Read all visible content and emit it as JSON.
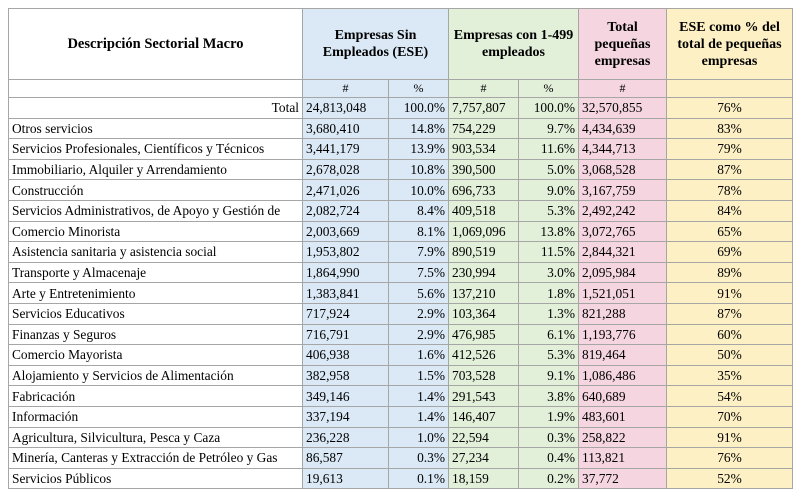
{
  "headers": {
    "description": "Descripción Sectorial Macro",
    "ese": "Empresas Sin Empleados (ESE)",
    "small": "Empresas con 1-499 empleados",
    "total_small": "Total pequeñas empresas",
    "ratio": "ESE como % del total de pequeñas empresas"
  },
  "subheaders": {
    "ese_count": "#",
    "ese_pct": "%",
    "small_count": "#",
    "small_pct": "%",
    "total_count": "#"
  },
  "total_row": {
    "label": "Total",
    "ese": "24,813,048",
    "ese_pct": "100.0%",
    "small": "7,757,807",
    "small_pct": "100.0%",
    "total": "32,570,855",
    "ratio": "76%"
  },
  "rows": [
    {
      "sector": "Otros servicios",
      "ese": "3,680,410",
      "ese_pct": "14.8%",
      "small": "754,229",
      "small_pct": "9.7%",
      "total": "4,434,639",
      "ratio": "83%"
    },
    {
      "sector": "Servicios Profesionales, Científicos y Técnicos",
      "ese": "3,441,179",
      "ese_pct": "13.9%",
      "small": "903,534",
      "small_pct": "11.6%",
      "total": "4,344,713",
      "ratio": "79%"
    },
    {
      "sector": "Immobiliario, Alquiler y Arrendamiento",
      "ese": "2,678,028",
      "ese_pct": "10.8%",
      "small": "390,500",
      "small_pct": "5.0%",
      "total": "3,068,528",
      "ratio": "87%"
    },
    {
      "sector": "Construcción",
      "ese": "2,471,026",
      "ese_pct": "10.0%",
      "small": "696,733",
      "small_pct": "9.0%",
      "total": "3,167,759",
      "ratio": "78%"
    },
    {
      "sector": "Servicios Administrativos, de Apoyo y Gestión de",
      "ese": "2,082,724",
      "ese_pct": "8.4%",
      "small": "409,518",
      "small_pct": "5.3%",
      "total": "2,492,242",
      "ratio": "84%"
    },
    {
      "sector": "Comercio Minorista",
      "ese": "2,003,669",
      "ese_pct": "8.1%",
      "small": "1,069,096",
      "small_pct": "13.8%",
      "total": "3,072,765",
      "ratio": "65%"
    },
    {
      "sector": "Asistencia sanitaria y asistencia social",
      "ese": "1,953,802",
      "ese_pct": "7.9%",
      "small": "890,519",
      "small_pct": "11.5%",
      "total": "2,844,321",
      "ratio": "69%"
    },
    {
      "sector": "Transporte y Almacenaje",
      "ese": "1,864,990",
      "ese_pct": "7.5%",
      "small": "230,994",
      "small_pct": "3.0%",
      "total": "2,095,984",
      "ratio": "89%"
    },
    {
      "sector": "Arte y Entretenimiento",
      "ese": "1,383,841",
      "ese_pct": "5.6%",
      "small": "137,210",
      "small_pct": "1.8%",
      "total": "1,521,051",
      "ratio": "91%"
    },
    {
      "sector": "Servicios Educativos",
      "ese": "717,924",
      "ese_pct": "2.9%",
      "small": "103,364",
      "small_pct": "1.3%",
      "total": "821,288",
      "ratio": "87%"
    },
    {
      "sector": "Finanzas y Seguros",
      "ese": "716,791",
      "ese_pct": "2.9%",
      "small": "476,985",
      "small_pct": "6.1%",
      "total": "1,193,776",
      "ratio": "60%"
    },
    {
      "sector": "Comercio Mayorista",
      "ese": "406,938",
      "ese_pct": "1.6%",
      "small": "412,526",
      "small_pct": "5.3%",
      "total": "819,464",
      "ratio": "50%"
    },
    {
      "sector": "Alojamiento y Servicios de Alimentación",
      "ese": "382,958",
      "ese_pct": "1.5%",
      "small": "703,528",
      "small_pct": "9.1%",
      "total": "1,086,486",
      "ratio": "35%"
    },
    {
      "sector": "Fabricación",
      "ese": "349,146",
      "ese_pct": "1.4%",
      "small": "291,543",
      "small_pct": "3.8%",
      "total": "640,689",
      "ratio": "54%"
    },
    {
      "sector": "Información",
      "ese": "337,194",
      "ese_pct": "1.4%",
      "small": "146,407",
      "small_pct": "1.9%",
      "total": "483,601",
      "ratio": "70%"
    },
    {
      "sector": "Agricultura, Silvicultura, Pesca y Caza",
      "ese": "236,228",
      "ese_pct": "1.0%",
      "small": "22,594",
      "small_pct": "0.3%",
      "total": "258,822",
      "ratio": "91%"
    },
    {
      "sector": "Minería, Canteras y Extracción de Petróleo y Gas",
      "ese": "86,587",
      "ese_pct": "0.3%",
      "small": "27,234",
      "small_pct": "0.4%",
      "total": "113,821",
      "ratio": "76%"
    },
    {
      "sector": "Servicios Públicos",
      "ese": "19,613",
      "ese_pct": "0.1%",
      "small": "18,159",
      "small_pct": "0.2%",
      "total": "37,772",
      "ratio": "52%"
    }
  ],
  "colors": {
    "ese_column": "#dbe9f7",
    "small_column": "#e2efd9",
    "total_column": "#f4d5e0",
    "ratio_column": "#fdf0c4",
    "grid_line": "#a6a6a6"
  }
}
